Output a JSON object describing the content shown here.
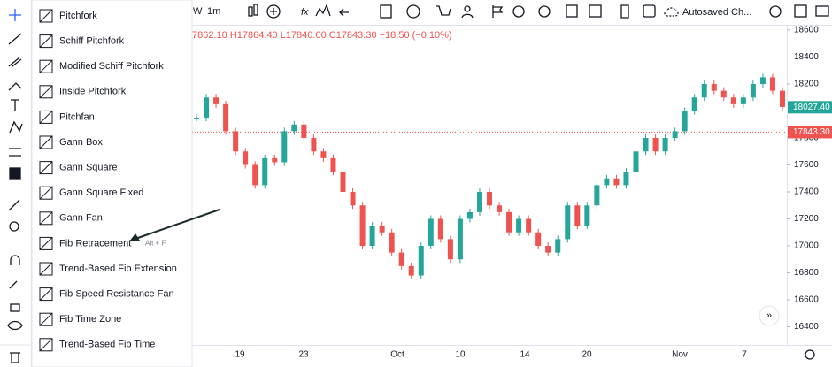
{
  "toolbar": {
    "interval_partial": "W",
    "interval": "1m",
    "layout": "Autosaved Ch..."
  },
  "legend": {
    "ohlc": "7862.10 H17864.40 L17840.00 C17843.30 −18.50 (−0.10%)"
  },
  "menu": {
    "items": [
      {
        "label": "Pitchfork"
      },
      {
        "label": "Schiff Pitchfork"
      },
      {
        "label": "Modified Schiff Pitchfork"
      },
      {
        "label": "Inside Pitchfork"
      },
      {
        "label": "Pitchfan"
      },
      {
        "label": "Gann Box"
      },
      {
        "label": "Gann Square"
      },
      {
        "label": "Gann Square Fixed"
      },
      {
        "label": "Gann Fan"
      },
      {
        "label": "Fib Retracement",
        "shortcut": "Alt + F"
      },
      {
        "label": "Trend-Based Fib Extension"
      },
      {
        "label": "Fib Speed Resistance Fan"
      },
      {
        "label": "Fib Time Zone"
      },
      {
        "label": "Trend-Based Fib Time"
      }
    ]
  },
  "chart": {
    "type": "candlestick",
    "closes": [
      17950,
      18100,
      18050,
      17850,
      17700,
      17600,
      17450,
      17650,
      17620,
      17850,
      17900,
      17800,
      17700,
      17650,
      17550,
      17400,
      17300,
      17000,
      17150,
      17100,
      16950,
      16850,
      16780,
      17000,
      17200,
      17050,
      16900,
      17200,
      17250,
      17400,
      17300,
      17250,
      17100,
      17200,
      17100,
      17000,
      16950,
      17050,
      17300,
      17150,
      17300,
      17450,
      17500,
      17450,
      17550,
      17700,
      17800,
      17700,
      17800,
      17850,
      18000,
      18100,
      18200,
      18150,
      18100,
      18050,
      18100,
      18200,
      18250,
      18150,
      18030
    ],
    "ylim": [
      16325,
      18650
    ],
    "yticks": [
      18600,
      18400,
      18200,
      18000,
      17800,
      17600,
      17400,
      17200,
      17000,
      16800,
      16600,
      16400
    ],
    "xticks": [
      "19",
      "23",
      "Oct",
      "10",
      "14",
      "20",
      "Nov",
      "7"
    ],
    "last_price": {
      "value": 18027.4,
      "label": "18027.40"
    },
    "prev_close": {
      "value": 17843.3,
      "label": "17843.30"
    }
  }
}
